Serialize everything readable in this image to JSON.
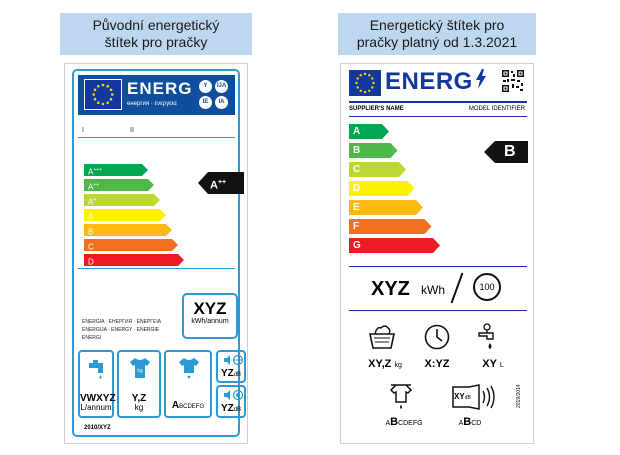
{
  "captions": {
    "old_line1": "Původní energetický",
    "old_line2": "štítek pro pračky",
    "new_line1": "Energetický štítek pro",
    "new_line2": "pračky platný od 1.3.2021"
  },
  "old_label": {
    "energ": "ENERG",
    "energ_sub": "енергия · ενεργεια",
    "badges": [
      "Y",
      "IJA",
      "IE",
      "IA"
    ],
    "roman": [
      "I",
      "II"
    ],
    "classes": [
      {
        "label": "A",
        "sup": "+++",
        "color": "#00a651"
      },
      {
        "label": "A",
        "sup": "++",
        "color": "#50b848"
      },
      {
        "label": "A",
        "sup": "+",
        "color": "#bed630"
      },
      {
        "label": "A",
        "sup": "",
        "color": "#fff200"
      },
      {
        "label": "B",
        "sup": "",
        "color": "#fdb913"
      },
      {
        "label": "C",
        "sup": "",
        "color": "#f37021"
      },
      {
        "label": "D",
        "sup": "",
        "color": "#ed1c24"
      }
    ],
    "rating": {
      "label": "A",
      "sup": "++"
    },
    "energy_value": "XYZ",
    "energy_unit": "kWh/annum",
    "languages": [
      "ENERGIA · ЕНЕРГИЯ · ΕΝΕΡΓΕΙΑ",
      "ENERGIJA · ENERGY · ENERGIE",
      "ENERGI"
    ],
    "water_value": "VWXYZ",
    "water_unit": "L/annum",
    "capacity_value": "Y,Z",
    "capacity_unit": "kg",
    "spin_class_first": "A",
    "spin_class_rest": "BCDEFG",
    "noise_wash": "YZ",
    "noise_spin": "YZ",
    "noise_unit": "dB",
    "footer": "2010/XYZ"
  },
  "new_label": {
    "energ": "ENERG",
    "supplier": "SUPPLIER'S NAME",
    "model": "MODEL IDENTIFIER",
    "classes": [
      {
        "label": "A",
        "color": "#00a651"
      },
      {
        "label": "B",
        "color": "#50b848"
      },
      {
        "label": "C",
        "color": "#bed630"
      },
      {
        "label": "D",
        "color": "#fff200"
      },
      {
        "label": "E",
        "color": "#fdb913"
      },
      {
        "label": "F",
        "color": "#f37021"
      },
      {
        "label": "G",
        "color": "#ed1c24"
      }
    ],
    "rating": "B",
    "energy_value": "XYZ",
    "energy_unit": "kWh",
    "cycles": "100",
    "capacity_value": "XY,Z",
    "capacity_unit": "kg",
    "duration_value": "X:YZ",
    "water_value": "XY",
    "water_unit": "L",
    "spin_first": "A",
    "spin_class": "B",
    "spin_rest": "CDEFG",
    "noise_value": "XY",
    "noise_unit": "dB",
    "noise_first": "A",
    "noise_class": "B",
    "noise_rest": "CD",
    "vertical_code": "2019/2014"
  }
}
